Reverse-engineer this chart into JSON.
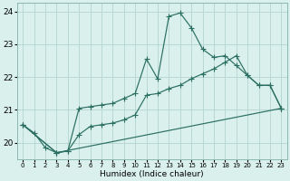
{
  "xlabel": "Humidex (Indice chaleur)",
  "bg_color": "#daf0ec",
  "grid_color": "#b8d8d4",
  "line_color": "#2a6e62",
  "xlim": [
    -0.5,
    23.5
  ],
  "ylim": [
    19.5,
    24.25
  ],
  "yticks": [
    20,
    21,
    22,
    23,
    24
  ],
  "xtick_labels": [
    "0",
    "1",
    "2",
    "3",
    "4",
    "5",
    "6",
    "7",
    "8",
    "9",
    "10",
    "11",
    "12",
    "13",
    "14",
    "15",
    "16",
    "17",
    "18",
    "19",
    "20",
    "21",
    "22",
    "23"
  ],
  "line1_x": [
    0,
    1,
    2,
    3,
    4,
    5,
    6,
    7,
    8,
    9,
    10,
    11,
    12,
    13,
    14,
    15,
    16,
    17,
    18,
    19,
    20,
    21,
    22,
    23
  ],
  "line1_y": [
    20.55,
    20.3,
    19.85,
    19.7,
    19.75,
    21.05,
    21.1,
    21.15,
    21.2,
    21.35,
    21.5,
    22.55,
    21.95,
    23.85,
    23.95,
    23.5,
    22.85,
    22.6,
    22.65,
    22.35,
    22.05,
    21.75,
    21.75,
    21.05
  ],
  "line2_x": [
    0,
    3,
    4,
    5,
    6,
    7,
    8,
    9,
    10,
    11,
    12,
    13,
    14,
    15,
    16,
    17,
    18,
    19,
    20,
    21,
    22,
    23
  ],
  "line2_y": [
    20.55,
    19.7,
    19.75,
    20.25,
    20.5,
    20.55,
    20.6,
    20.7,
    20.85,
    21.45,
    21.5,
    21.65,
    21.75,
    21.95,
    22.1,
    22.25,
    22.45,
    22.65,
    22.05,
    21.75,
    21.75,
    21.05
  ],
  "line3_x": [
    0,
    3,
    23
  ],
  "line3_y": [
    20.55,
    19.7,
    21.05
  ]
}
